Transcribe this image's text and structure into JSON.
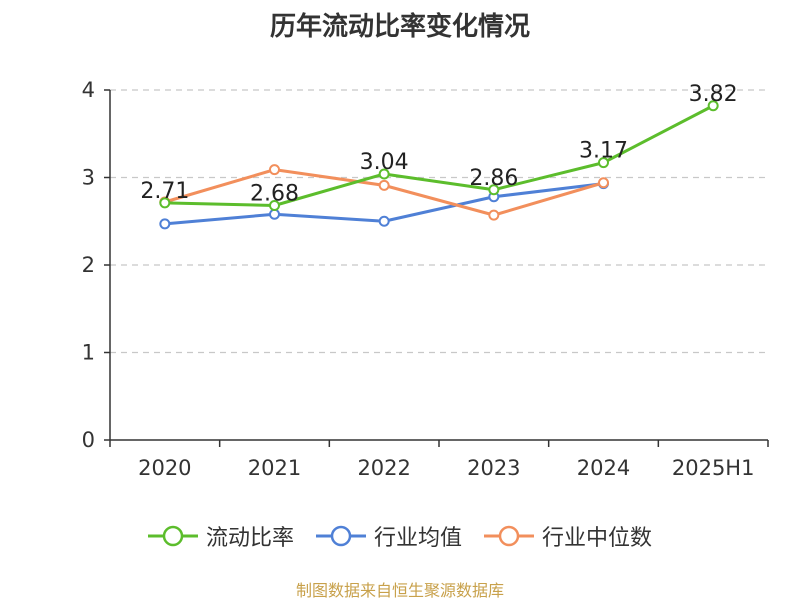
{
  "title": "历年流动比率变化情况",
  "source": "制图数据来自恒生聚源数据库",
  "chart_data": {
    "type": "line",
    "categories": [
      "2020",
      "2021",
      "2022",
      "2023",
      "2024",
      "2025H1"
    ],
    "ylim": [
      0,
      4
    ],
    "yticks": [
      "0",
      "1",
      "2",
      "3",
      "4"
    ],
    "grid": true,
    "legend_position": "bottom",
    "series": [
      {
        "name": "流动比率",
        "color": "#5cbd2c",
        "values": [
          2.71,
          2.68,
          3.04,
          2.86,
          3.17,
          3.82
        ],
        "labels": [
          "2.71",
          "2.68",
          "3.04",
          "2.86",
          "3.17",
          "3.82"
        ]
      },
      {
        "name": "行业均值",
        "color": "#4f80d6",
        "values": [
          2.47,
          2.58,
          2.5,
          2.78,
          2.93,
          null
        ]
      },
      {
        "name": "行业中位数",
        "color": "#f28f5c",
        "values": [
          2.72,
          3.09,
          2.91,
          2.57,
          2.94,
          null
        ]
      }
    ]
  }
}
